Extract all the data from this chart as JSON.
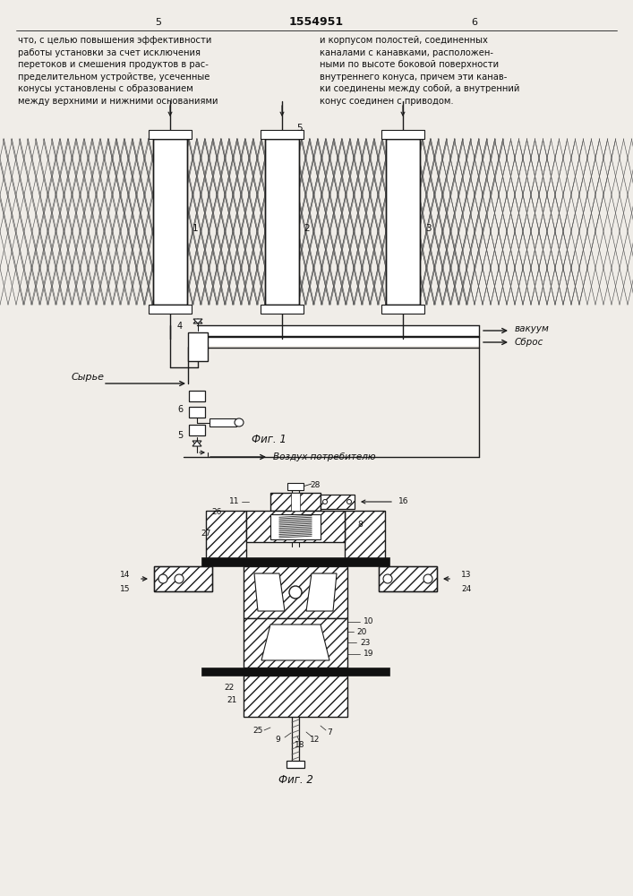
{
  "bg_color": "#f0ede8",
  "line_color": "#1a1a1a",
  "text_color": "#111111",
  "title": "1554951",
  "page_left": "5",
  "page_right": "6",
  "text_left": "что, с целью повышения эффективности\nработы установки за счет исключения\nперетоков и смешения продуктов в рас-\nпределительном устройстве, усеченные\nконусы установлены с образованием\nмежду верхними и нижними основаниями",
  "text_right": "и корпусом полостей, соединенных\nканалами с канавками, расположен-\nными по высоте боковой поверхности\nвнутреннего конуса, причем эти канав-\nки соединены между собой, а внутренний\nконус соединен с приводом.",
  "fig1_caption": "Фиг. 1",
  "fig2_caption": "Фиг. 2"
}
